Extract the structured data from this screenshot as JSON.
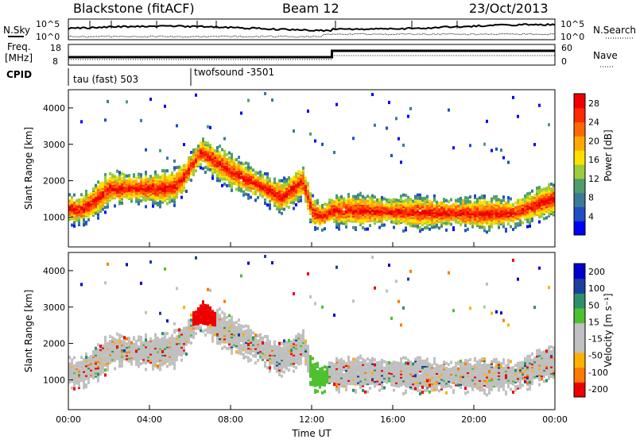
{
  "header": {
    "station": "Blackstone (fitACF)",
    "beam": "Beam 12",
    "date": "23/Oct/2013"
  },
  "top_panels": {
    "nsky_label": "N.Sky",
    "nsky_ticks": [
      "10^5",
      "10^0"
    ],
    "nsearch_label": "N.Search",
    "nsearch_ticks": [
      "10^5",
      "10^0"
    ],
    "freq_label_1": "Freq.",
    "freq_label_2": "[MHz]",
    "freq_ticks": [
      "18",
      "8"
    ],
    "nave_label": "Nave",
    "nave_ticks": [
      "60",
      "0"
    ],
    "cpid_label": "CPID",
    "cpid_segments": [
      {
        "label": "tau (fast) 503",
        "start_hour": 0,
        "end_hour": 6
      },
      {
        "label": "twofsound -3501",
        "start_hour": 6,
        "end_hour": 24
      }
    ]
  },
  "colors": {
    "power_scale": [
      "#0000ff",
      "#1f4fc0",
      "#3a7a9a",
      "#4f9e6e",
      "#9ccc3a",
      "#ffe100",
      "#ffaa00",
      "#ff6a00",
      "#ff2a00",
      "#ee0000"
    ],
    "velocity_scale": [
      "#ee0000",
      "#ff7a00",
      "#ffb000",
      "#c0c0c0",
      "#c0c0c0",
      "#4fc030",
      "#2f8f6a",
      "#1a3f9f",
      "#0000cc"
    ]
  },
  "chart_data": [
    {
      "type": "heatmap",
      "name": "Power",
      "xlabel": "",
      "ylabel": "Slant Range [km]",
      "x_ticks": [
        "00:00",
        "04:00",
        "08:00",
        "12:00",
        "16:00",
        "20:00",
        "00:00"
      ],
      "xlim_hours": [
        0,
        24
      ],
      "ylim": [
        180,
        4500
      ],
      "y_ticks": [
        1000,
        2000,
        3000,
        4000
      ],
      "colorbar_label": "Power [dB]",
      "colorbar_ticks": [
        4,
        8,
        12,
        16,
        20,
        24,
        28
      ],
      "colorbar_range": [
        0,
        30
      ],
      "echo_band_center_km": [
        [
          0.0,
          1250
        ],
        [
          0.5,
          1200
        ],
        [
          1.0,
          1350
        ],
        [
          2.0,
          1800
        ],
        [
          3.5,
          1800
        ],
        [
          5.0,
          1800
        ],
        [
          5.5,
          2000
        ],
        [
          6.5,
          2800
        ],
        [
          8.0,
          2250
        ],
        [
          9.5,
          1850
        ],
        [
          10.5,
          1550
        ],
        [
          11.5,
          2000
        ],
        [
          12.0,
          1150
        ],
        [
          12.5,
          1000
        ],
        [
          13.0,
          1200
        ],
        [
          16.0,
          1150
        ],
        [
          20.0,
          1100
        ],
        [
          22.0,
          1120
        ],
        [
          23.5,
          1450
        ],
        [
          24.0,
          1500
        ]
      ],
      "representative_power_db": 24
    },
    {
      "type": "heatmap",
      "name": "Velocity",
      "xlabel": "Time UT",
      "ylabel": "Slant Range [km]",
      "x_ticks": [
        "00:00",
        "04:00",
        "08:00",
        "12:00",
        "16:00",
        "20:00",
        "00:00"
      ],
      "xlim_hours": [
        0,
        24
      ],
      "ylim": [
        180,
        4500
      ],
      "y_ticks": [
        1000,
        2000,
        3000,
        4000
      ],
      "colorbar_label": "Velocity [m s⁻¹]",
      "colorbar_ticks": [
        200,
        100,
        50,
        15,
        -15,
        -50,
        -100,
        -200
      ],
      "colorbar_range": [
        -250,
        250
      ],
      "representative_velocity_ms": 0
    }
  ]
}
